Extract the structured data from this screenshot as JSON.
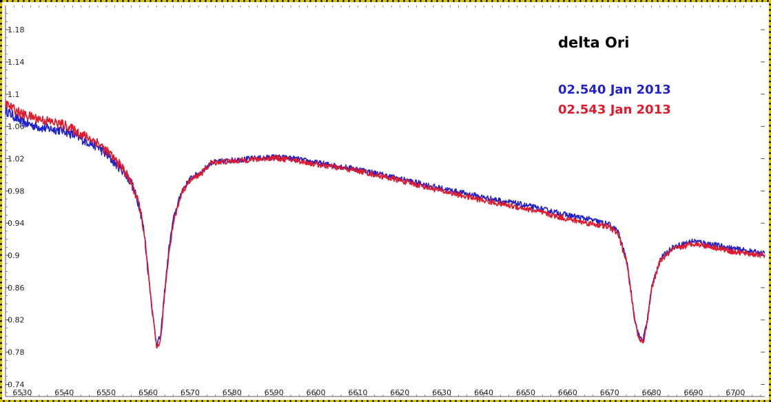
{
  "chart_data": {
    "type": "line",
    "title": "delta Ori",
    "xlabel": "",
    "ylabel": "",
    "xlim": [
      6526,
      6707
    ],
    "ylim": [
      0.725,
      1.21
    ],
    "x_ticks": [
      6530,
      6540,
      6550,
      6560,
      6570,
      6580,
      6590,
      6600,
      6610,
      6620,
      6630,
      6640,
      6650,
      6660,
      6670,
      6680,
      6690,
      6700
    ],
    "y_ticks": [
      0.74,
      0.78,
      0.82,
      0.86,
      0.9,
      0.94,
      0.98,
      1.02,
      1.06,
      1.1,
      1.14,
      1.18
    ],
    "y_tick_labels": [
      "0.74",
      "0.78",
      "0.82",
      "0.86",
      "0.9",
      "0.94",
      "0.98",
      "1.02",
      "1.06",
      "1.1",
      "1.14",
      "1.18"
    ],
    "grid": false,
    "legend_placement": "top-right",
    "colors": {
      "frame": "#d8c200",
      "axis": "#555555"
    },
    "series": [
      {
        "name": "02.540 Jan 2013",
        "color": "#2222cc",
        "points": [
          [
            6526,
            1.08
          ],
          [
            6530,
            1.065
          ],
          [
            6535,
            1.058
          ],
          [
            6540,
            1.055
          ],
          [
            6545,
            1.042
          ],
          [
            6548,
            1.035
          ],
          [
            6551,
            1.02
          ],
          [
            6554,
            1.005
          ],
          [
            6556,
            0.99
          ],
          [
            6558,
            0.96
          ],
          [
            6559,
            0.93
          ],
          [
            6560,
            0.88
          ],
          [
            6561,
            0.83
          ],
          [
            6562,
            0.79
          ],
          [
            6563,
            0.8
          ],
          [
            6564,
            0.86
          ],
          [
            6565,
            0.91
          ],
          [
            6566,
            0.945
          ],
          [
            6568,
            0.98
          ],
          [
            6570,
            0.995
          ],
          [
            6573,
            1.005
          ],
          [
            6575,
            1.015
          ],
          [
            6580,
            1.018
          ],
          [
            6585,
            1.02
          ],
          [
            6590,
            1.022
          ],
          [
            6595,
            1.02
          ],
          [
            6600,
            1.015
          ],
          [
            6610,
            1.007
          ],
          [
            6620,
            0.995
          ],
          [
            6630,
            0.983
          ],
          [
            6640,
            0.972
          ],
          [
            6650,
            0.962
          ],
          [
            6660,
            0.95
          ],
          [
            6665,
            0.945
          ],
          [
            6670,
            0.938
          ],
          [
            6672,
            0.93
          ],
          [
            6674,
            0.895
          ],
          [
            6675,
            0.86
          ],
          [
            6676,
            0.82
          ],
          [
            6677,
            0.8
          ],
          [
            6678,
            0.795
          ],
          [
            6679,
            0.82
          ],
          [
            6680,
            0.86
          ],
          [
            6682,
            0.895
          ],
          [
            6685,
            0.91
          ],
          [
            6690,
            0.918
          ],
          [
            6695,
            0.913
          ],
          [
            6700,
            0.908
          ],
          [
            6707,
            0.902
          ]
        ]
      },
      {
        "name": "02.543 Jan 2013",
        "color": "#e01a2a",
        "points": [
          [
            6526,
            1.088
          ],
          [
            6530,
            1.075
          ],
          [
            6535,
            1.068
          ],
          [
            6540,
            1.062
          ],
          [
            6545,
            1.048
          ],
          [
            6548,
            1.04
          ],
          [
            6551,
            1.025
          ],
          [
            6554,
            1.008
          ],
          [
            6556,
            0.99
          ],
          [
            6558,
            0.96
          ],
          [
            6559,
            0.93
          ],
          [
            6560,
            0.88
          ],
          [
            6561,
            0.83
          ],
          [
            6562,
            0.785
          ],
          [
            6563,
            0.795
          ],
          [
            6564,
            0.855
          ],
          [
            6565,
            0.905
          ],
          [
            6566,
            0.94
          ],
          [
            6568,
            0.978
          ],
          [
            6570,
            0.993
          ],
          [
            6573,
            1.003
          ],
          [
            6575,
            1.015
          ],
          [
            6580,
            1.017
          ],
          [
            6585,
            1.019
          ],
          [
            6590,
            1.021
          ],
          [
            6595,
            1.018
          ],
          [
            6600,
            1.013
          ],
          [
            6610,
            1.005
          ],
          [
            6620,
            0.993
          ],
          [
            6630,
            0.98
          ],
          [
            6640,
            0.968
          ],
          [
            6650,
            0.958
          ],
          [
            6660,
            0.945
          ],
          [
            6665,
            0.94
          ],
          [
            6670,
            0.935
          ],
          [
            6672,
            0.927
          ],
          [
            6674,
            0.893
          ],
          [
            6675,
            0.858
          ],
          [
            6676,
            0.82
          ],
          [
            6677,
            0.797
          ],
          [
            6678,
            0.792
          ],
          [
            6679,
            0.818
          ],
          [
            6680,
            0.858
          ],
          [
            6682,
            0.893
          ],
          [
            6685,
            0.907
          ],
          [
            6690,
            0.915
          ],
          [
            6695,
            0.91
          ],
          [
            6700,
            0.904
          ],
          [
            6707,
            0.9
          ]
        ]
      }
    ]
  }
}
